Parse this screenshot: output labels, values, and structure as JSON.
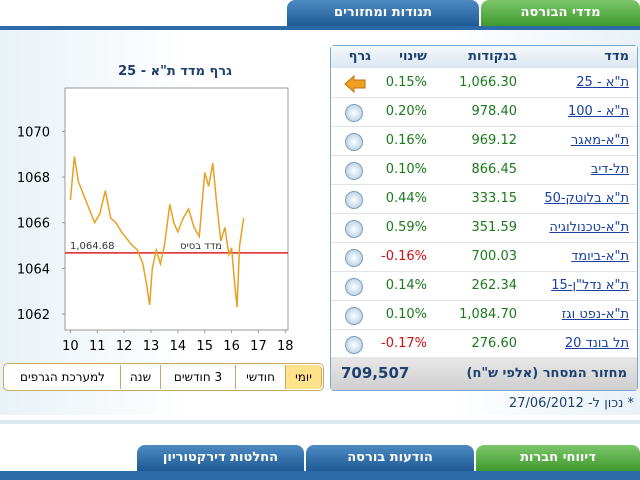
{
  "tabs_top": [
    "מדדי הבורסה",
    "תנודות ומחזורים"
  ],
  "table": {
    "headers": [
      "מדד",
      "בנקודות",
      "שינוי",
      "גרף"
    ],
    "rows": [
      [
        "ת\"א - 25",
        "1,066.30",
        "0.15%"
      ],
      [
        "ת\"א - 100",
        "978.40",
        "0.20%"
      ],
      [
        "ת\"א-מאגר",
        "969.12",
        "0.16%"
      ],
      [
        "תל-דיב",
        "866.45",
        "0.10%"
      ],
      [
        "ת\"א בלוטק-50",
        "333.15",
        "0.44%"
      ],
      [
        "ת\"א-טכנולוגיה",
        "351.59",
        "0.59%"
      ],
      [
        "ת\"א-ביומד",
        "700.03",
        "-0.16%"
      ],
      [
        "ת\"א נדל\"ן-15",
        "262.34",
        "0.14%"
      ],
      [
        "ת\"א-נפט וגז",
        "1,084.70",
        "0.10%"
      ],
      [
        "תל בונד 20",
        "276.60",
        "-0.17%"
      ]
    ],
    "footer_label": "מחזור המסחר (אלפי ש\"ח)",
    "footer_value": "709,507"
  },
  "as_of": "* נכון ל- 27/06/2012",
  "chart": {
    "type": "line",
    "title": "גרף מדד ת\"א - 25",
    "color": "#e8a020",
    "x": [
      10.0,
      10.15,
      10.3,
      10.5,
      10.7,
      10.9,
      11.1,
      11.3,
      11.5,
      11.7,
      11.9,
      12.1,
      12.3,
      12.5,
      12.7,
      12.85,
      12.95,
      13.05,
      13.2,
      13.35,
      13.5,
      13.7,
      13.85,
      14.0,
      14.2,
      14.4,
      14.6,
      14.8,
      15.0,
      15.15,
      15.3,
      15.45,
      15.6,
      15.75,
      15.9,
      16.0,
      16.1,
      16.2,
      16.3,
      16.45
    ],
    "values": [
      1067.0,
      1068.9,
      1067.8,
      1067.2,
      1066.6,
      1066.0,
      1066.4,
      1067.4,
      1066.2,
      1066.0,
      1065.6,
      1065.3,
      1065.0,
      1064.8,
      1064.2,
      1063.2,
      1062.4,
      1064.0,
      1064.8,
      1064.2,
      1065.0,
      1066.8,
      1066.0,
      1065.6,
      1066.2,
      1066.6,
      1065.8,
      1065.4,
      1068.2,
      1067.6,
      1068.6,
      1066.8,
      1065.2,
      1065.8,
      1064.6,
      1064.9,
      1063.5,
      1062.3,
      1065.0,
      1066.2
    ],
    "xlim": [
      9.8,
      18.1
    ],
    "ylim": [
      1061.3,
      1071.9
    ],
    "xticks": [
      10,
      11,
      12,
      13,
      14,
      15,
      16,
      17,
      18
    ],
    "yticks": [
      1062,
      1064,
      1066,
      1068,
      1070
    ],
    "baseline": {
      "value": 1064.68,
      "label": "1,064.68",
      "name": "מדד בסיס",
      "color": "#e02020"
    }
  },
  "range_buttons": [
    "יומי",
    "חודשי",
    "3 חודשים",
    "שנה",
    "למערכת הגרפים"
  ],
  "tabs_bottom": [
    "דיווחי חברות",
    "הודעות בורסה",
    "החלטות דירקטוריון"
  ]
}
